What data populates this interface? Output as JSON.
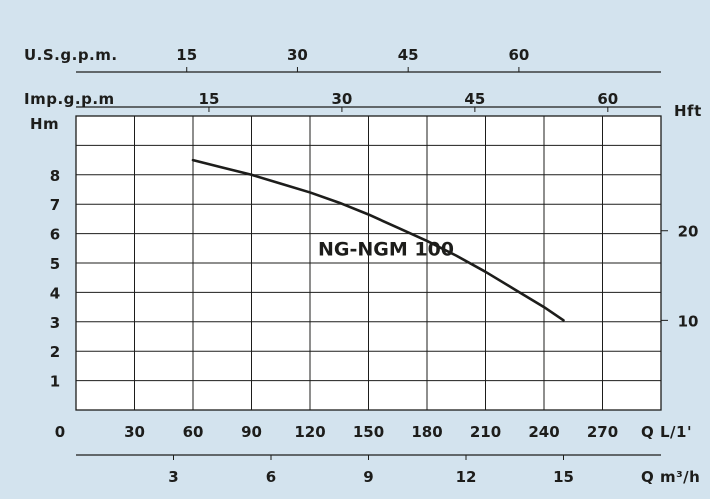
{
  "chart_data": {
    "type": "line",
    "title": "",
    "series": [
      {
        "name": "NG-NGM 100",
        "x": [
          60,
          75,
          90,
          105,
          120,
          135,
          150,
          165,
          180,
          195,
          210,
          225,
          240,
          250
        ],
        "y": [
          8.5,
          8.25,
          8.0,
          7.7,
          7.4,
          7.05,
          6.65,
          6.2,
          5.75,
          5.25,
          4.7,
          4.1,
          3.5,
          3.05
        ]
      }
    ],
    "xlim": [
      0,
      300
    ],
    "ylim": [
      0,
      10
    ],
    "grid": true,
    "primary_x_axis": {
      "label": "Q L/1'",
      "ticks": [
        0,
        30,
        60,
        90,
        120,
        150,
        180,
        210,
        240,
        270
      ]
    },
    "secondary_x_axis_m3h": {
      "label": "Q m³/h",
      "ticks": [
        3,
        6,
        9,
        12,
        15
      ],
      "range": [
        0,
        18
      ]
    },
    "top_axis_imp": {
      "label": "Imp.g.p.m",
      "ticks": [
        15,
        30,
        45,
        60
      ],
      "range": [
        0,
        66
      ]
    },
    "top_axis_us": {
      "label": "U.S.g.p.m.",
      "ticks": [
        15,
        30,
        45,
        60
      ],
      "range": [
        0,
        79.25
      ]
    },
    "left_axis": {
      "label": "Hm",
      "ticks": [
        1,
        2,
        3,
        4,
        5,
        6,
        7,
        8
      ]
    },
    "right_axis": {
      "label": "Hft",
      "ticks": [
        10,
        20
      ],
      "range": [
        0,
        32.8
      ]
    },
    "annotations": [
      {
        "text": "NG-NGM 100",
        "x": 160,
        "y": 5.5
      }
    ]
  }
}
